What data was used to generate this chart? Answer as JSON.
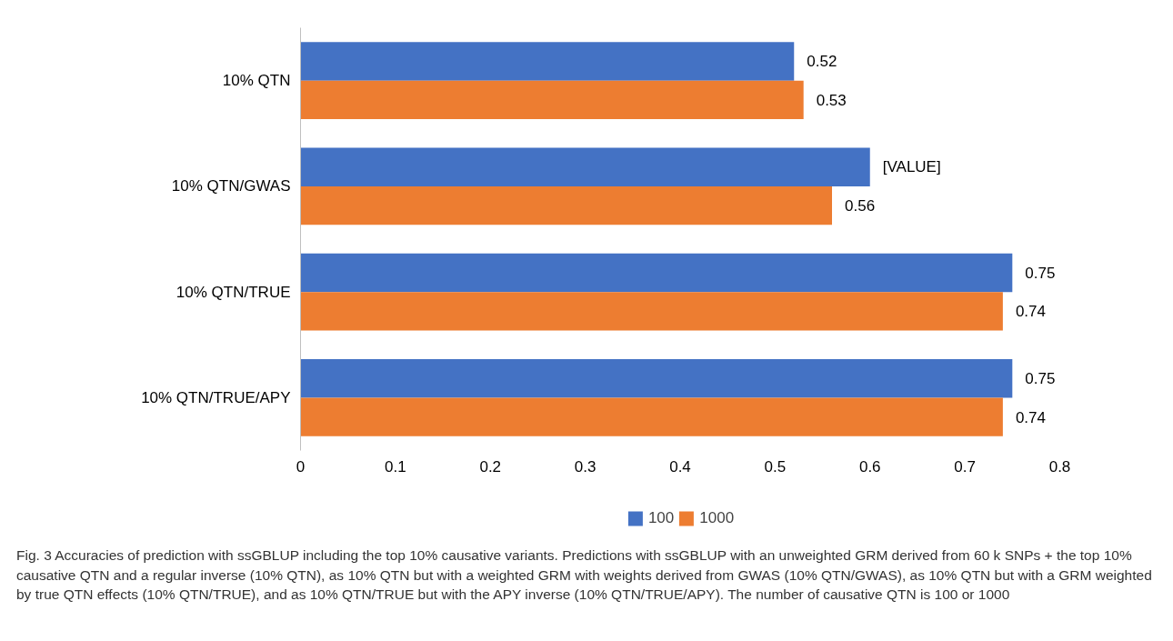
{
  "chart_data": {
    "type": "bar",
    "orientation": "horizontal",
    "categories": [
      "10% QTN",
      "10% QTN/GWAS",
      "10% QTN/TRUE",
      "10% QTN/TRUE/APY"
    ],
    "series": [
      {
        "name": "100",
        "color": "#4472c4",
        "values": [
          0.52,
          0.6,
          0.75,
          0.75
        ],
        "value_labels": [
          "0.52",
          "[VALUE]",
          "0.75",
          "0.75"
        ]
      },
      {
        "name": "1000",
        "color": "#ed7d31",
        "values": [
          0.53,
          0.56,
          0.74,
          0.74
        ],
        "value_labels": [
          "0.53",
          "0.56",
          "0.74",
          "0.74"
        ]
      }
    ],
    "xlim": [
      0,
      0.8
    ],
    "xticks": [
      0,
      0.1,
      0.2,
      0.3,
      0.4,
      0.5,
      0.6,
      0.7,
      0.8
    ],
    "grid": false,
    "legend": "bottom",
    "annotations": [
      "Fig. 3 Accuracies of prediction with ssGBLUP including the top 10% causative variants. Predictions with ssGBLUP with an unweighted GRM derived from 60 k SNPs + the top 10% causative QTN and a regular inverse (10% QTN), as 10% QTN but with a weighted GRM with weights derived from GWAS (10% QTN/GWAS), as 10% QTN but with a GRM weighted by true QTN effects (10% QTN/TRUE), and as 10% QTN/TRUE but with the APY inverse (10% QTN/TRUE/APY). The number of causative QTN is 100 or 1000"
    ]
  }
}
